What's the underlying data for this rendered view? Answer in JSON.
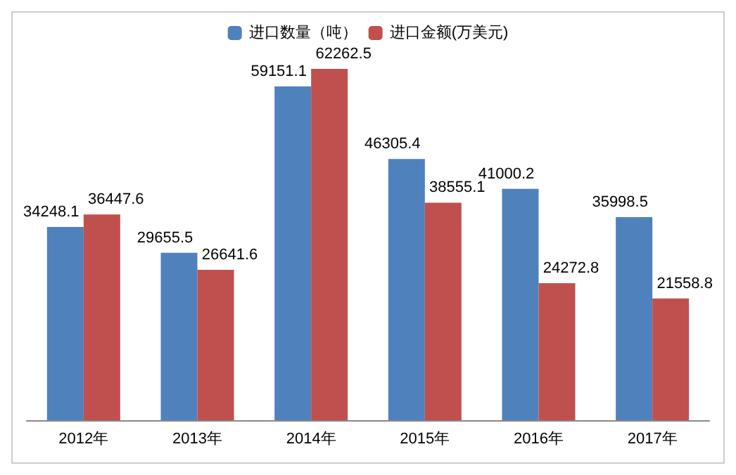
{
  "chart_data": {
    "type": "bar",
    "categories": [
      "2012年",
      "2013年",
      "2014年",
      "2015年",
      "2016年",
      "2017年"
    ],
    "series": [
      {
        "name": "进口数量（吨）",
        "color": "#4f81bd",
        "values": [
          34248.1,
          29655.5,
          59151.1,
          46305.4,
          41000.2,
          35998.5
        ]
      },
      {
        "name": "进口金额(万美元)",
        "color": "#c0504d",
        "values": [
          36447.6,
          26641.6,
          62262.5,
          38555.1,
          24272.8,
          21558.8
        ]
      }
    ],
    "data_labels": true,
    "legend": "top"
  }
}
